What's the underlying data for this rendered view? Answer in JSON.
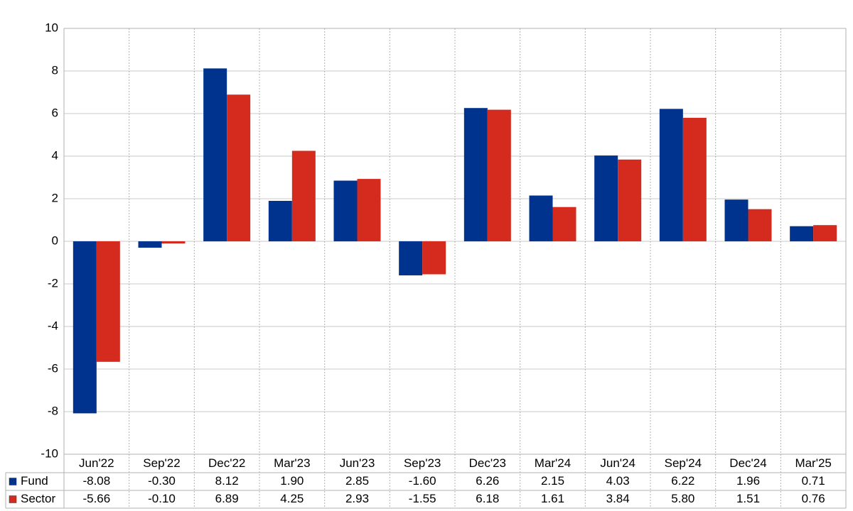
{
  "chart_data": {
    "type": "bar",
    "categories": [
      "Jun'22",
      "Sep'22",
      "Dec'22",
      "Mar'23",
      "Jun'23",
      "Sep'23",
      "Dec'23",
      "Mar'24",
      "Jun'24",
      "Sep'24",
      "Dec'24",
      "Mar'25"
    ],
    "series": [
      {
        "name": "Fund",
        "color": "#00338d",
        "values": [
          -8.08,
          -0.3,
          8.12,
          1.9,
          2.85,
          -1.6,
          6.26,
          2.15,
          4.03,
          6.22,
          1.96,
          0.71
        ],
        "value_labels": [
          "-8.08",
          "-0.30",
          "8.12",
          "1.90",
          "2.85",
          "-1.60",
          "6.26",
          "2.15",
          "4.03",
          "6.22",
          "1.96",
          "0.71"
        ]
      },
      {
        "name": "Sector",
        "color": "#d52b1e",
        "values": [
          -5.66,
          -0.1,
          6.89,
          4.25,
          2.93,
          -1.55,
          6.18,
          1.61,
          3.84,
          5.8,
          1.51,
          0.76
        ],
        "value_labels": [
          "-5.66",
          "-0.10",
          "6.89",
          "4.25",
          "2.93",
          "-1.55",
          "6.18",
          "1.61",
          "3.84",
          "5.80",
          "1.51",
          "0.76"
        ]
      }
    ],
    "ylim": [
      -10,
      10
    ],
    "yticks": [
      -10,
      -8,
      -6,
      -4,
      -2,
      0,
      2,
      4,
      6,
      8,
      10
    ],
    "grid": true,
    "negative_label_color": "#ff0000"
  }
}
